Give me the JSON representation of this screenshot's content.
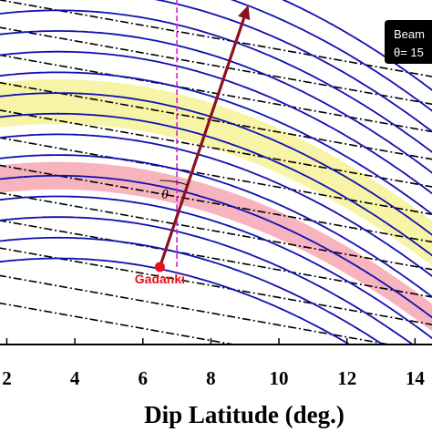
{
  "chart_data": {
    "type": "line",
    "xlabel": "Dip Latitude (deg.)",
    "xlim": [
      1.8,
      14.5
    ],
    "x_ticks": [
      2,
      4,
      6,
      8,
      10,
      12,
      14
    ],
    "x_tick_labels": [
      "2",
      "4",
      "6",
      "8",
      "10",
      "12",
      "14"
    ],
    "ylim": [
      0,
      1
    ],
    "grid": false,
    "legend_box": {
      "line1": "Beam",
      "line2": "θ= 15"
    },
    "station": {
      "name": "Gadanki",
      "x": 6.5,
      "y": 0.225,
      "color": "#e8101a"
    },
    "vertical_line": {
      "x": 7.0,
      "color": "#d020d0",
      "style": "dashed"
    },
    "beam": {
      "from": [
        6.5,
        0.225
      ],
      "to": [
        9.1,
        0.985
      ],
      "color": "#8b1020"
    },
    "angle_label": "θ",
    "field_lines": {
      "color": "#1010b0",
      "bend_x": 3.5,
      "offsets": [
        0.18,
        0.14,
        0.1,
        0.06,
        0.02,
        -0.02,
        -0.06,
        -0.1,
        -0.14,
        -0.18,
        -0.22,
        -0.26,
        -0.3,
        -0.34,
        -0.38,
        -0.42
      ],
      "peaks": [
        0.25,
        0.31,
        0.37,
        0.43,
        0.49,
        0.55,
        0.61,
        0.67,
        0.73,
        0.79,
        0.85,
        0.91,
        0.97,
        1.03,
        1.09,
        1.15
      ]
    },
    "altitude_contours": {
      "color": "#000000",
      "style": "dash-dot",
      "slope": -0.0175,
      "intercepts": [
        0.12,
        0.2,
        0.28,
        0.36,
        0.44,
        0.52,
        0.6,
        0.68,
        0.76,
        0.84,
        0.92,
        1.0
      ]
    },
    "bands": [
      {
        "name": "yellow",
        "color": "#f7f4a8",
        "peak_low": 0.64,
        "peak_high": 0.77
      },
      {
        "name": "pink",
        "color": "#f7b4bf",
        "peak_low": 0.45,
        "peak_high": 0.53
      }
    ]
  }
}
